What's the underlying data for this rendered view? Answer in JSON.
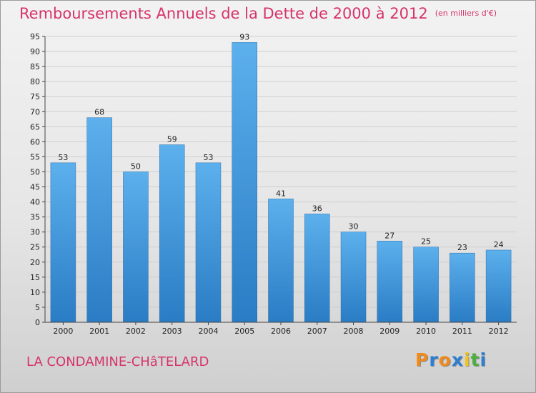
{
  "chart_data": {
    "type": "bar",
    "title": "Remboursements Annuels de la Dette de 2000 à 2012",
    "subtitle": "(en milliers d'€)",
    "categories": [
      "2000",
      "2001",
      "2002",
      "2003",
      "2004",
      "2005",
      "2006",
      "2007",
      "2008",
      "2009",
      "2010",
      "2011",
      "2012"
    ],
    "values": [
      53,
      68,
      50,
      59,
      53,
      93,
      41,
      36,
      30,
      27,
      25,
      23,
      24
    ],
    "ylim": [
      0,
      95
    ],
    "yticks": [
      0,
      5,
      10,
      15,
      20,
      25,
      30,
      35,
      40,
      45,
      50,
      55,
      60,
      65,
      70,
      75,
      80,
      85,
      90,
      95
    ],
    "grid": true,
    "bar_color": "#3f97dc"
  },
  "location": "LA CONDAMINE-CHâTELARD",
  "brand": {
    "letters": [
      "P",
      "r",
      "o",
      "x",
      "i",
      "t",
      "i"
    ],
    "colors": [
      "#f08a1c",
      "#2e7fd1",
      "#f08a1c",
      "#2e7fd1",
      "#f0c419",
      "#4caf3f",
      "#2e7fd1"
    ]
  }
}
